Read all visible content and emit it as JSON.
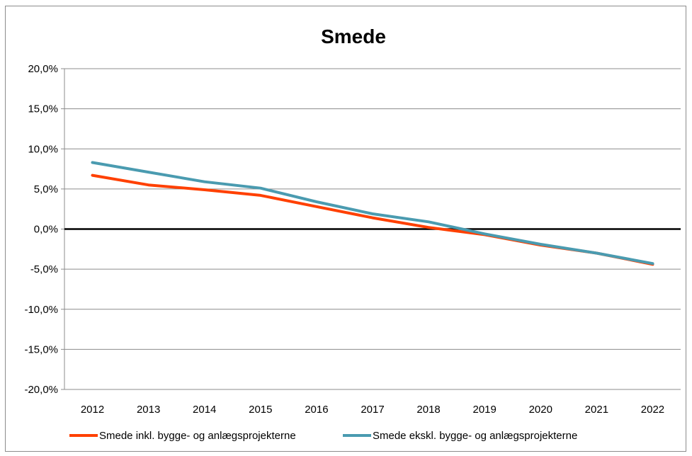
{
  "chart_data": {
    "type": "line",
    "title": "Smede",
    "xlabel": "",
    "ylabel": "",
    "x": [
      "2012",
      "2013",
      "2014",
      "2015",
      "2016",
      "2017",
      "2018",
      "2019",
      "2020",
      "2021",
      "2022"
    ],
    "y_ticks": [
      "20,0%",
      "15,0%",
      "10,0%",
      "5,0%",
      "0,0%",
      "-5,0%",
      "-10,0%",
      "-15,0%",
      "-20,0%"
    ],
    "ylim": [
      -20,
      20
    ],
    "grid": true,
    "legend_position": "bottom",
    "series": [
      {
        "name": "Smede inkl. bygge- og anlægsprojekterne",
        "color": "#ff4000",
        "values": [
          6.7,
          5.5,
          4.9,
          4.2,
          2.8,
          1.4,
          0.2,
          -0.7,
          -2.0,
          -3.0,
          -4.4
        ]
      },
      {
        "name": "Smede ekskl. bygge- og anlægsprojekterne",
        "color": "#4a9bb0",
        "values": [
          8.3,
          7.1,
          5.9,
          5.1,
          3.4,
          1.9,
          0.9,
          -0.6,
          -1.9,
          -3.0,
          -4.3
        ]
      }
    ]
  }
}
